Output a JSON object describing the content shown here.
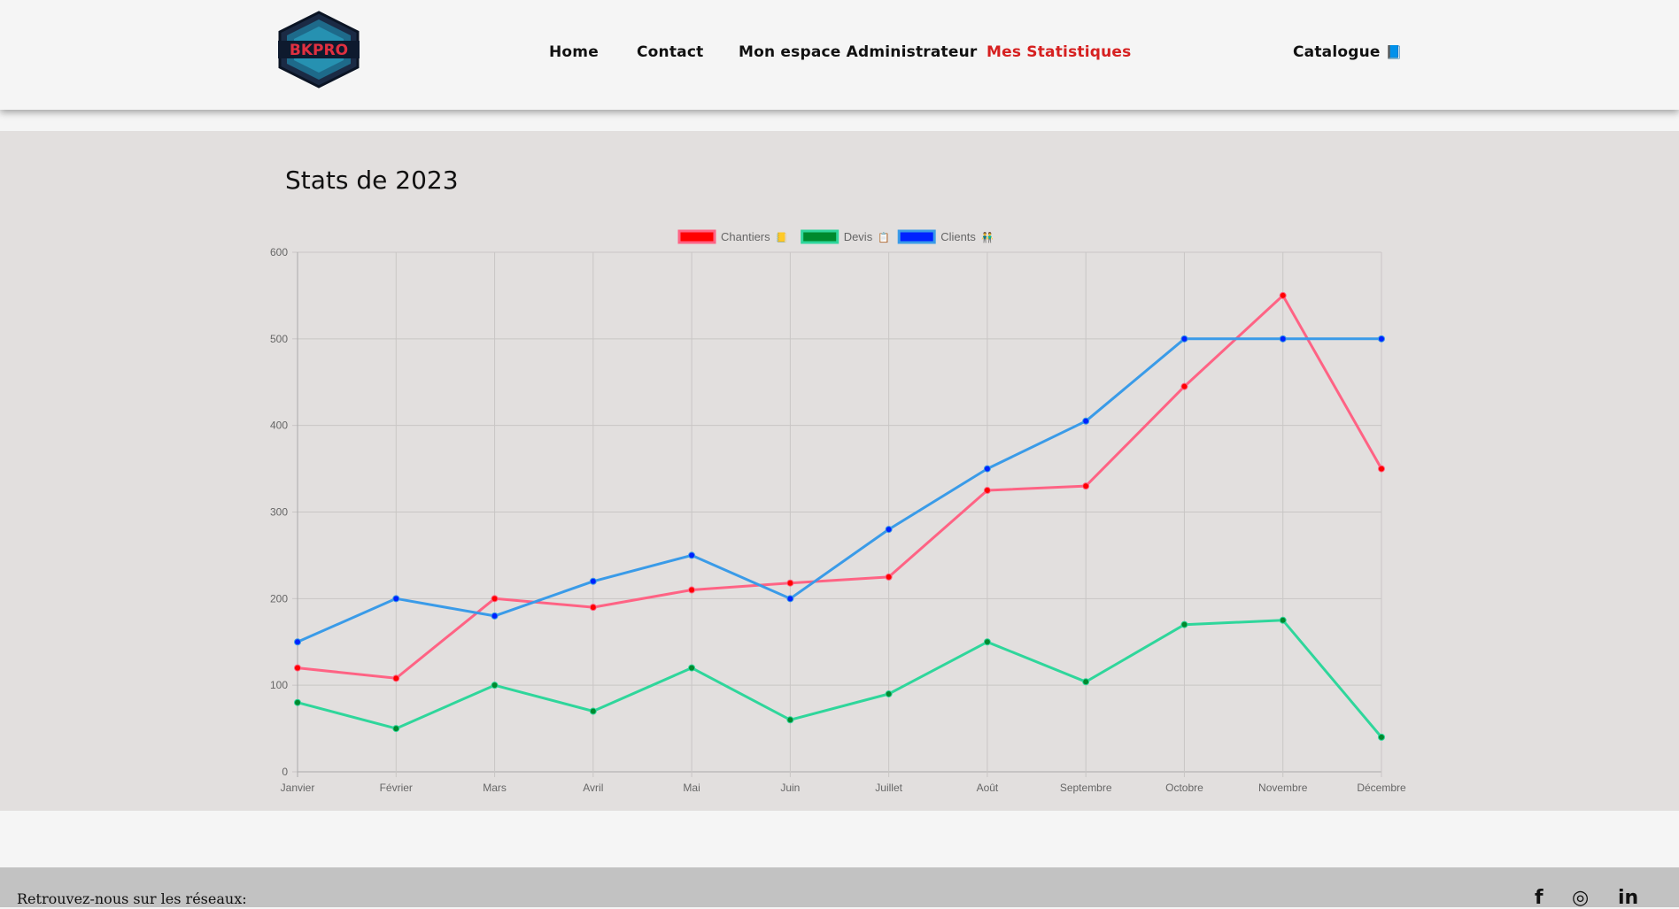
{
  "nav": {
    "items": [
      {
        "label": "Home"
      },
      {
        "label": "Contact"
      },
      {
        "label": "Mon espace Administrateur"
      },
      {
        "label": "Mes Statistiques",
        "active": true
      },
      {
        "label": "Catalogue",
        "icon": "book-icon"
      }
    ],
    "logo_text": "BKPRO"
  },
  "stats": {
    "title": "Stats de 2023"
  },
  "chart_data": {
    "type": "line",
    "categories": [
      "Janvier",
      "Février",
      "Mars",
      "Avril",
      "Mai",
      "Juin",
      "Juillet",
      "Août",
      "Septembre",
      "Octobre",
      "Novembre",
      "Décembre"
    ],
    "series": [
      {
        "name": "Chantiers",
        "emoji": "📒",
        "color": "#ff6384",
        "point_color": "#ff0000",
        "legend_color": "#ff0000",
        "values": [
          120,
          108,
          200,
          190,
          210,
          218,
          225,
          325,
          330,
          445,
          550,
          350
        ]
      },
      {
        "name": "Devis",
        "emoji": "📋",
        "color": "#2fd69b",
        "point_color": "#008a2e",
        "legend_color": "#008a2e",
        "values": [
          80,
          50,
          100,
          70,
          120,
          60,
          90,
          150,
          104,
          170,
          175,
          40
        ]
      },
      {
        "name": "Clients",
        "emoji": "👬",
        "color": "#3a9be8",
        "point_color": "#0022ff",
        "legend_color": "#0022ff",
        "values": [
          150,
          200,
          180,
          220,
          250,
          200,
          280,
          350,
          405,
          500,
          500,
          500
        ]
      }
    ],
    "ylim": [
      0,
      600
    ],
    "yticks": [
      0,
      100,
      200,
      300,
      400,
      500,
      600
    ],
    "grid": true,
    "legend": "top"
  },
  "footer": {
    "text": "Retrouvez-nous sur les réseaux:",
    "social": [
      {
        "icon": "facebook-icon",
        "glyph": "f"
      },
      {
        "icon": "instagram-icon",
        "glyph": "◎"
      },
      {
        "icon": "linkedin-icon",
        "glyph": "in"
      }
    ]
  }
}
